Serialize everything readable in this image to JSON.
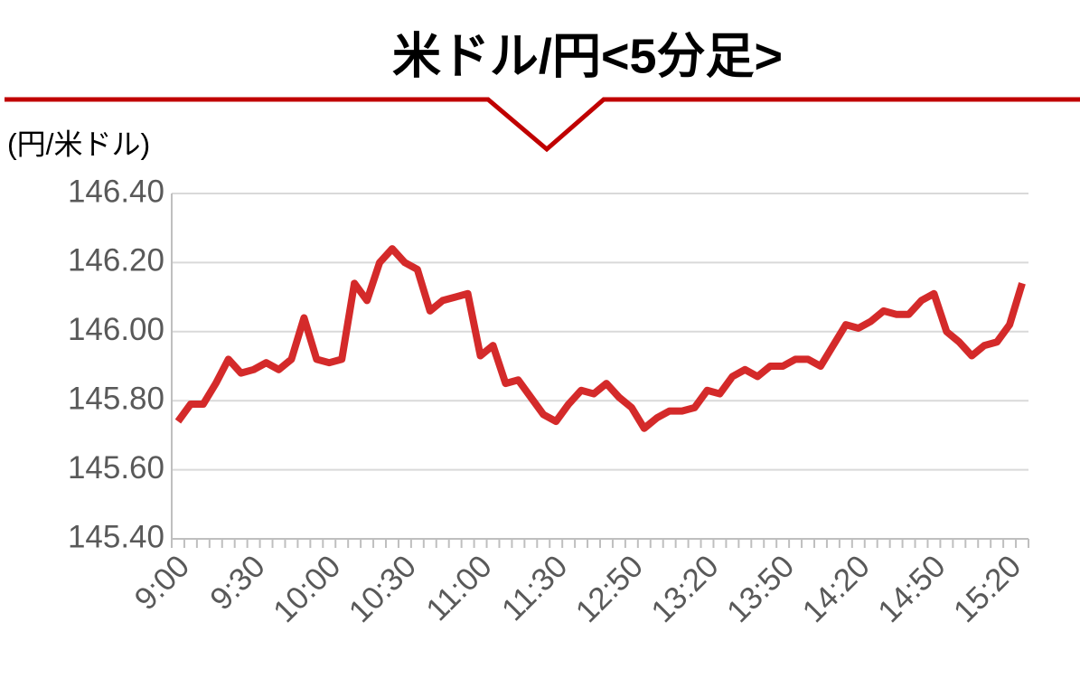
{
  "chart_data": {
    "type": "line",
    "title": "米ドル/円<5分足>",
    "y_label": "(円/米ドル)",
    "categories": [
      "9:00",
      null,
      null,
      null,
      null,
      null,
      "9:30",
      null,
      null,
      null,
      null,
      null,
      "10:00",
      null,
      null,
      null,
      null,
      null,
      "10:30",
      null,
      null,
      null,
      null,
      null,
      "11:00",
      null,
      null,
      null,
      null,
      null,
      "11:30",
      null,
      null,
      null,
      null,
      null,
      "12:50",
      null,
      null,
      null,
      null,
      null,
      "13:20",
      null,
      null,
      null,
      null,
      null,
      "13:50",
      null,
      null,
      null,
      null,
      null,
      "14:20",
      null,
      null,
      null,
      null,
      null,
      "14:50",
      null,
      null,
      null,
      null,
      null,
      "15:20",
      null
    ],
    "values": [
      145.74,
      145.79,
      145.79,
      145.85,
      145.92,
      145.88,
      145.89,
      145.91,
      145.89,
      145.92,
      146.04,
      145.92,
      145.91,
      145.92,
      146.14,
      146.09,
      146.2,
      146.24,
      146.2,
      146.18,
      146.06,
      146.09,
      146.1,
      146.11,
      145.93,
      145.96,
      145.85,
      145.86,
      145.81,
      145.76,
      145.74,
      145.79,
      145.83,
      145.82,
      145.85,
      145.81,
      145.78,
      145.72,
      145.75,
      145.77,
      145.77,
      145.78,
      145.83,
      145.82,
      145.87,
      145.89,
      145.87,
      145.9,
      145.9,
      145.92,
      145.92,
      145.9,
      145.96,
      146.02,
      146.01,
      146.03,
      146.06,
      146.05,
      146.05,
      146.09,
      146.11,
      146.0,
      145.97,
      145.93,
      145.96,
      145.97,
      146.02,
      146.14
    ],
    "color": "#d42a2a",
    "ylim": [
      145.4,
      146.4
    ],
    "yticks": [
      {
        "value": 145.4,
        "label": "145.40"
      },
      {
        "value": 145.6,
        "label": "145.60"
      },
      {
        "value": 145.8,
        "label": "145.80"
      },
      {
        "value": 146.0,
        "label": "146.00"
      },
      {
        "value": 146.2,
        "label": "146.20"
      },
      {
        "value": 146.4,
        "label": "146.40"
      }
    ],
    "grid": true
  }
}
